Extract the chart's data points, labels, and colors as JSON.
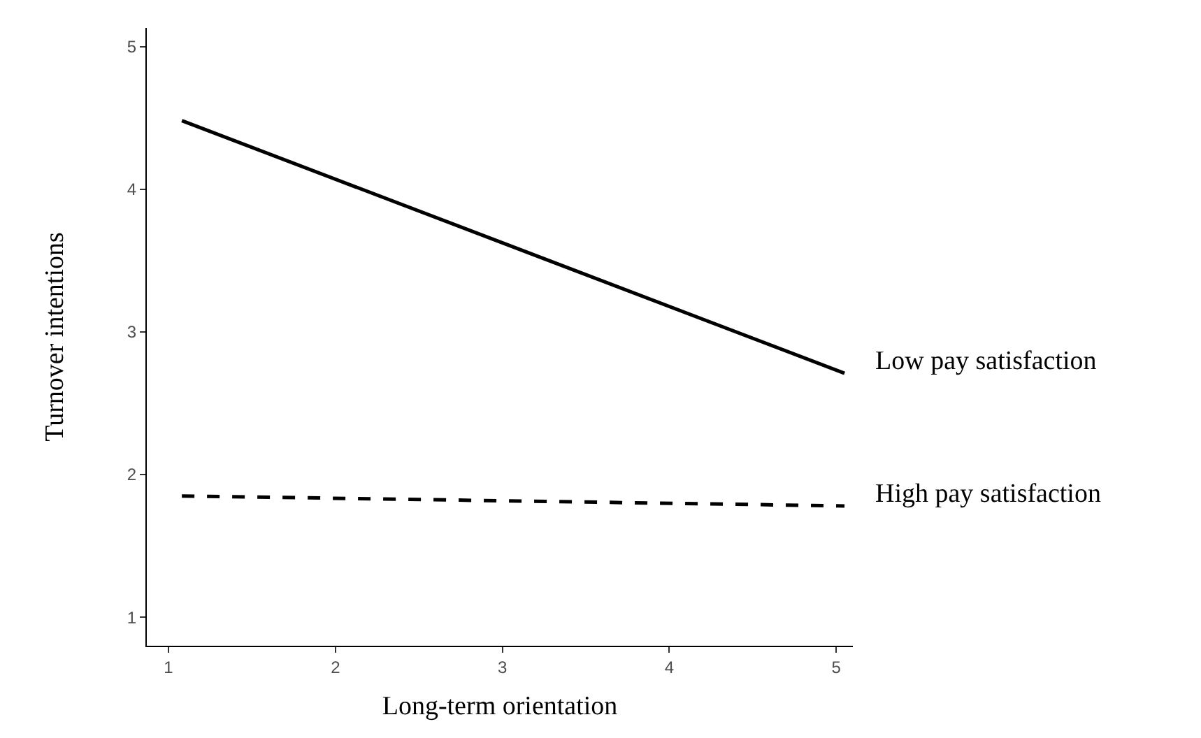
{
  "chart_data": {
    "type": "line",
    "xlabel": "Long-term orientation",
    "ylabel": "Turnover intentions",
    "x": [
      1.08,
      5.05
    ],
    "series": [
      {
        "name": "Low pay satisfaction",
        "color": "#000000",
        "values": [
          4.48,
          2.71
        ],
        "line_style": "solid"
      },
      {
        "name": "High pay satisfaction",
        "color": "#000000",
        "values": [
          1.85,
          1.78
        ],
        "line_style": "dashed"
      }
    ],
    "xlim": [
      0.87,
      5.1
    ],
    "ylim": [
      0.8,
      5.13
    ],
    "xticks": [
      1,
      2,
      3,
      4,
      5
    ],
    "yticks": [
      1,
      2,
      3,
      4,
      5
    ],
    "legend": false,
    "marker": "none"
  }
}
